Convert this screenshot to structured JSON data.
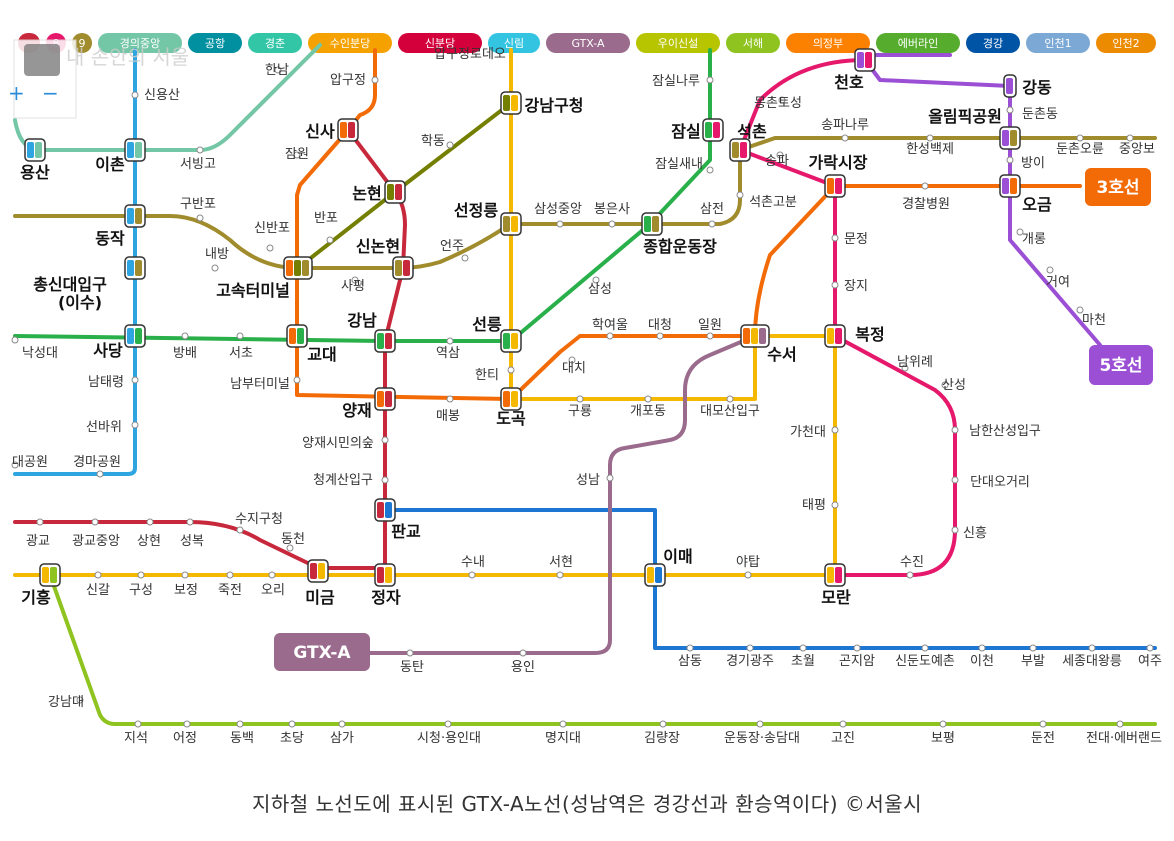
{
  "caption": "지하철 노선도에 표시된 GTX-A노선(성남역은 경강선과 환승역이다) ©서울시",
  "watermark": "내 손안의 서울",
  "legend": [
    {
      "label": "",
      "color": "#c8283c"
    },
    {
      "label": "8",
      "color": "#e6186c"
    },
    {
      "label": "9",
      "color": "#a08c2c"
    },
    {
      "label": "경의중앙",
      "color": "#73c7a6"
    },
    {
      "label": "공항",
      "color": "#0090a0"
    },
    {
      "label": "경춘",
      "color": "#32c6a6"
    },
    {
      "label": "수인분당",
      "color": "#f5a200"
    },
    {
      "label": "신분당",
      "color": "#d4003b"
    },
    {
      "label": "신림",
      "color": "#32c4e0"
    },
    {
      "label": "GTX-A",
      "color": "#9a6b8c"
    },
    {
      "label": "우이신설",
      "color": "#b7c400"
    },
    {
      "label": "서해",
      "color": "#8fc31f"
    },
    {
      "label": "의정부",
      "color": "#fd8100"
    },
    {
      "label": "에버라인",
      "color": "#56ad2d"
    },
    {
      "label": "경강",
      "color": "#0054a6"
    },
    {
      "label": "인천1",
      "color": "#7ca8d5"
    },
    {
      "label": "인천2",
      "color": "#ed8b00"
    }
  ],
  "line_badges": {
    "line3": {
      "label": "3호선",
      "color": "#f36b07"
    },
    "line5": {
      "label": "5호선",
      "color": "#9b4fd4"
    },
    "gtxa": {
      "label": "GTX-A",
      "color": "#9a6b8c"
    }
  },
  "stations_major": [
    {
      "id": "yongsan",
      "name": "용산"
    },
    {
      "id": "ichon",
      "name": "이촌"
    },
    {
      "id": "dongjak",
      "name": "동작"
    },
    {
      "id": "chongsin",
      "name": "총신대입구"
    },
    {
      "id": "chongsin2",
      "name": "(이수)"
    },
    {
      "id": "sadang",
      "name": "사당"
    },
    {
      "id": "sinsa",
      "name": "신사"
    },
    {
      "id": "nonhyeon",
      "name": "논현"
    },
    {
      "id": "sinnonhyeon",
      "name": "신논현"
    },
    {
      "id": "express",
      "name": "고속터미널"
    },
    {
      "id": "gyodae",
      "name": "교대"
    },
    {
      "id": "gangnam",
      "name": "강남"
    },
    {
      "id": "yangjae",
      "name": "양재"
    },
    {
      "id": "dogok",
      "name": "도곡"
    },
    {
      "id": "seolleung",
      "name": "선릉"
    },
    {
      "id": "seonjeongneung",
      "name": "선정릉"
    },
    {
      "id": "gangnamgu",
      "name": "강남구청"
    },
    {
      "id": "jamsil",
      "name": "잠실"
    },
    {
      "id": "seokchon",
      "name": "석촌"
    },
    {
      "id": "sportscomplex",
      "name": "종합운동장"
    },
    {
      "id": "garak",
      "name": "가락시장"
    },
    {
      "id": "cheonho",
      "name": "천호"
    },
    {
      "id": "gangdong",
      "name": "강동"
    },
    {
      "id": "olympic",
      "name": "올림픽공원"
    },
    {
      "id": "ogeum",
      "name": "오금"
    },
    {
      "id": "suseo",
      "name": "수서"
    },
    {
      "id": "bokjeong",
      "name": "복정"
    },
    {
      "id": "pangyo",
      "name": "판교"
    },
    {
      "id": "imae",
      "name": "이매"
    },
    {
      "id": "jeongja",
      "name": "정자"
    },
    {
      "id": "migeum",
      "name": "미금"
    },
    {
      "id": "moran",
      "name": "모란"
    },
    {
      "id": "giheung",
      "name": "기흥"
    }
  ],
  "stations_minor": [
    {
      "id": "hannam",
      "name": "한남"
    },
    {
      "id": "apgujeong",
      "name": "압구정"
    },
    {
      "id": "sinyongsan",
      "name": "신용산"
    },
    {
      "id": "seobinggo",
      "name": "서빙고"
    },
    {
      "id": "jamwon",
      "name": "잠원"
    },
    {
      "id": "hakdong",
      "name": "학동"
    },
    {
      "id": "gubanpo",
      "name": "구반포"
    },
    {
      "id": "sinbanpo",
      "name": "신반포"
    },
    {
      "id": "banpo",
      "name": "반포"
    },
    {
      "id": "naebang",
      "name": "내방"
    },
    {
      "id": "eonju",
      "name": "언주"
    },
    {
      "id": "samseongjungang",
      "name": "삼성중앙"
    },
    {
      "id": "bongeunsa",
      "name": "봉은사"
    },
    {
      "id": "samjeon",
      "name": "삼전"
    },
    {
      "id": "seokchongobun",
      "name": "석촌고분"
    },
    {
      "id": "songpa",
      "name": "송파"
    },
    {
      "id": "jamsilsaenae",
      "name": "잠실새내"
    },
    {
      "id": "jamsilnaru",
      "name": "잠실나루"
    },
    {
      "id": "mongchon",
      "name": "몽촌토성"
    },
    {
      "id": "songpanaru",
      "name": "송파나루"
    },
    {
      "id": "hanseong",
      "name": "한성백제"
    },
    {
      "id": "dunchondong",
      "name": "둔촌동"
    },
    {
      "id": "dunchonoryun",
      "name": "둔촌오륜"
    },
    {
      "id": "jungangbohun",
      "name": "중앙보"
    },
    {
      "id": "bangi",
      "name": "방이"
    },
    {
      "id": "gyeongchal",
      "name": "경찰병원"
    },
    {
      "id": "gaerong",
      "name": "개롱"
    },
    {
      "id": "geoyeo",
      "name": "거여"
    },
    {
      "id": "macheon",
      "name": "마천"
    },
    {
      "id": "munjeong",
      "name": "문정"
    },
    {
      "id": "jangji",
      "name": "장지"
    },
    {
      "id": "sapyeong",
      "name": "사평"
    },
    {
      "id": "samseong",
      "name": "삼성"
    },
    {
      "id": "yeoksam",
      "name": "역삼"
    },
    {
      "id": "hakyeoul",
      "name": "학여울"
    },
    {
      "id": "daecheong",
      "name": "대청"
    },
    {
      "id": "irwon",
      "name": "일원"
    },
    {
      "id": "daechi",
      "name": "대치"
    },
    {
      "id": "hanti",
      "name": "한티"
    },
    {
      "id": "guryong",
      "name": "구룡"
    },
    {
      "id": "gaepodong",
      "name": "개포동"
    },
    {
      "id": "daemosan",
      "name": "대모산입구"
    },
    {
      "id": "banghae",
      "name": "방배"
    },
    {
      "id": "seocho",
      "name": "서초"
    },
    {
      "id": "nambu",
      "name": "남부터미널"
    },
    {
      "id": "seongdae",
      "name": "낙성대"
    },
    {
      "id": "namtaeryeong",
      "name": "남태령"
    },
    {
      "id": "seonbawi",
      "name": "선바위"
    },
    {
      "id": "seoulpark",
      "name": "대공원"
    },
    {
      "id": "gyeongma",
      "name": "경마공원"
    },
    {
      "id": "maebong",
      "name": "매봉"
    },
    {
      "id": "yangjaecitizen",
      "name": "양재시민의숲"
    },
    {
      "id": "cheonggye",
      "name": "청계산입구"
    },
    {
      "id": "namwirye",
      "name": "남위례"
    },
    {
      "id": "sanseong",
      "name": "산성"
    },
    {
      "id": "namhansanseong",
      "name": "남한산성입구"
    },
    {
      "id": "dandae",
      "name": "단대오거리"
    },
    {
      "id": "sinheung",
      "name": "신흥"
    },
    {
      "id": "sujin",
      "name": "수진"
    },
    {
      "id": "gacheon",
      "name": "가천대"
    },
    {
      "id": "taepyeong",
      "name": "태평"
    },
    {
      "id": "seongnam",
      "name": "성남"
    },
    {
      "id": "sujigu",
      "name": "수지구청"
    },
    {
      "id": "dongcheon",
      "name": "동천"
    },
    {
      "id": "gwanggyo",
      "name": "광교"
    },
    {
      "id": "gwanggyojungang",
      "name": "광교중앙"
    },
    {
      "id": "sanghyeon",
      "name": "상현"
    },
    {
      "id": "seongbok",
      "name": "성복"
    },
    {
      "id": "singal",
      "name": "신갈"
    },
    {
      "id": "guseong",
      "name": "구성"
    },
    {
      "id": "bojeong",
      "name": "보정"
    },
    {
      "id": "jukjeon",
      "name": "죽전"
    },
    {
      "id": "ori",
      "name": "오리"
    },
    {
      "id": "sunae",
      "name": "수내"
    },
    {
      "id": "seohyeon",
      "name": "서현"
    },
    {
      "id": "yatap",
      "name": "야탑"
    },
    {
      "id": "dongtan",
      "name": "동탄"
    },
    {
      "id": "yongin",
      "name": "용인"
    },
    {
      "id": "samdong",
      "name": "삼동"
    },
    {
      "id": "gyeonggigwangju",
      "name": "경기광주"
    },
    {
      "id": "chowol",
      "name": "초월"
    },
    {
      "id": "gonjiam",
      "name": "곤지암"
    },
    {
      "id": "sindundoyechon",
      "name": "신둔도예촌"
    },
    {
      "id": "icheon",
      "name": "이천"
    },
    {
      "id": "bubal",
      "name": "부발"
    },
    {
      "id": "sejong",
      "name": "세종대왕릉"
    },
    {
      "id": "yeoju",
      "name": "여주"
    },
    {
      "id": "gangnamdae",
      "name": "강남대"
    },
    {
      "id": "jiseok",
      "name": "지석"
    },
    {
      "id": "eojeong",
      "name": "어정"
    },
    {
      "id": "dongbaek",
      "name": "동백"
    },
    {
      "id": "chodang",
      "name": "초당"
    },
    {
      "id": "samga",
      "name": "삼가"
    },
    {
      "id": "cityhall",
      "name": "시청·용인대"
    },
    {
      "id": "myongji",
      "name": "명지대"
    },
    {
      "id": "gimnyangjang",
      "name": "김량장"
    },
    {
      "id": "stadium",
      "name": "운동장·송담대"
    },
    {
      "id": "gojin",
      "name": "고진"
    },
    {
      "id": "bopyeong",
      "name": "보평"
    },
    {
      "id": "dunjeon",
      "name": "둔전"
    },
    {
      "id": "everland",
      "name": "전대·에버랜드"
    },
    {
      "id": "apgujeongtop",
      "name": "압구정로데오"
    }
  ]
}
